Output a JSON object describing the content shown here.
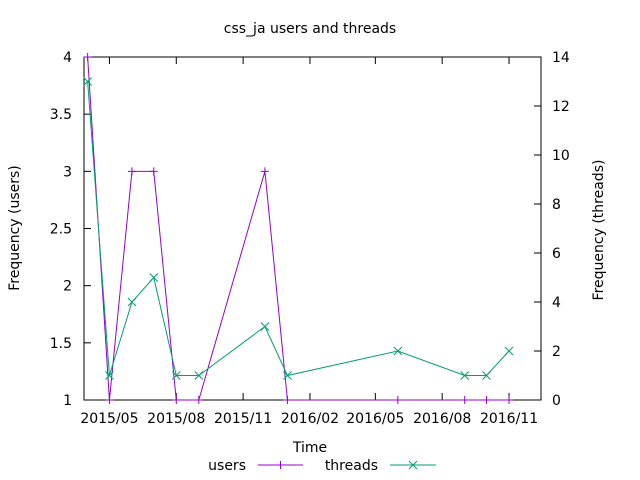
{
  "chart_data": {
    "type": "line",
    "title": "css_ja users and threads",
    "xlabel": "Time",
    "ylabel_left": "Frequency (users)",
    "ylabel_right": "Frequency (threads)",
    "x_domain": [
      "2015-03-27",
      "2016-12-15"
    ],
    "ylim_left": [
      1,
      4
    ],
    "ylim_right": [
      0,
      14
    ],
    "yticks_left": [
      "1",
      "1.5",
      "2",
      "2.5",
      "3",
      "3.5",
      "4"
    ],
    "yticks_right": [
      "0",
      "2",
      "4",
      "6",
      "8",
      "10",
      "12",
      "14"
    ],
    "xticks": [
      {
        "date": "2015-05-01",
        "label": "2015/05"
      },
      {
        "date": "2015-08-01",
        "label": "2015/08"
      },
      {
        "date": "2015-11-01",
        "label": "2015/11"
      },
      {
        "date": "2016-02-01",
        "label": "2016/02"
      },
      {
        "date": "2016-05-01",
        "label": "2016/05"
      },
      {
        "date": "2016-08-01",
        "label": "2016/08"
      },
      {
        "date": "2016-11-01",
        "label": "2016/11"
      }
    ],
    "legend_position": "bottom",
    "series": [
      {
        "name": "users",
        "axis": "left",
        "color": "#9400d3",
        "marker": "plus",
        "points": [
          {
            "x": "2015-04-01",
            "y": 4
          },
          {
            "x": "2015-05-01",
            "y": 1
          },
          {
            "x": "2015-06-01",
            "y": 3
          },
          {
            "x": "2015-07-01",
            "y": 3
          },
          {
            "x": "2015-08-01",
            "y": 1
          },
          {
            "x": "2015-09-01",
            "y": 1
          },
          {
            "x": "2015-12-01",
            "y": 3
          },
          {
            "x": "2016-01-01",
            "y": 1
          },
          {
            "x": "2016-06-01",
            "y": 1
          },
          {
            "x": "2016-09-01",
            "y": 1
          },
          {
            "x": "2016-10-01",
            "y": 1
          },
          {
            "x": "2016-11-01",
            "y": 1
          }
        ]
      },
      {
        "name": "threads",
        "axis": "right",
        "color": "#009e73",
        "marker": "cross",
        "points": [
          {
            "x": "2015-04-01",
            "y": 13
          },
          {
            "x": "2015-05-01",
            "y": 1
          },
          {
            "x": "2015-06-01",
            "y": 4
          },
          {
            "x": "2015-07-01",
            "y": 5
          },
          {
            "x": "2015-08-01",
            "y": 1
          },
          {
            "x": "2015-09-01",
            "y": 1
          },
          {
            "x": "2015-12-01",
            "y": 3
          },
          {
            "x": "2016-01-01",
            "y": 1
          },
          {
            "x": "2016-06-01",
            "y": 2
          },
          {
            "x": "2016-09-01",
            "y": 1
          },
          {
            "x": "2016-10-01",
            "y": 1
          },
          {
            "x": "2016-11-01",
            "y": 2
          }
        ]
      }
    ]
  }
}
